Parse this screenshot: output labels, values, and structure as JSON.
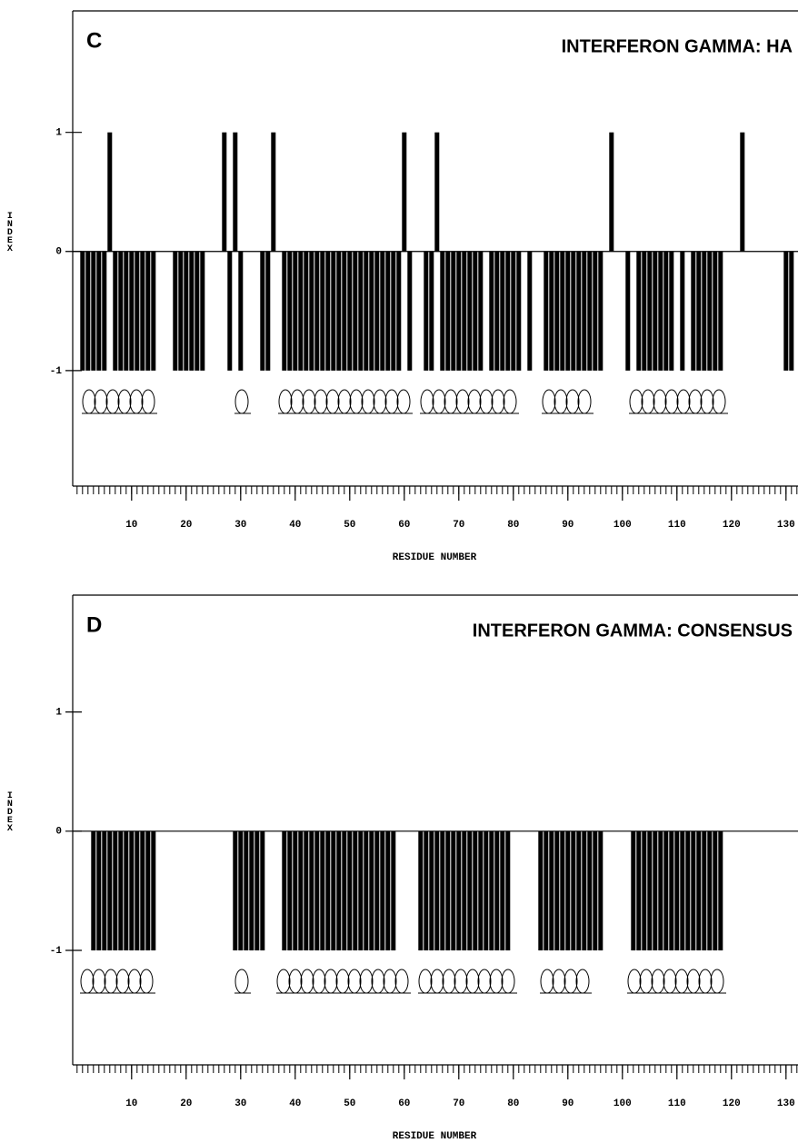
{
  "chart_data": [
    {
      "type": "bar",
      "panel": "C",
      "title": "INTERFERON GAMMA: HA",
      "x_label": "RESIDUE NUMBER",
      "y_label": "INDEX",
      "color": "#000000",
      "x": [
        1,
        2,
        3,
        4,
        5,
        6,
        7,
        8,
        9,
        10,
        11,
        12,
        13,
        14,
        18,
        19,
        20,
        21,
        22,
        23,
        27,
        28,
        29,
        30,
        34,
        35,
        36,
        38,
        39,
        40,
        41,
        42,
        43,
        44,
        45,
        46,
        47,
        48,
        49,
        50,
        51,
        52,
        53,
        54,
        55,
        56,
        57,
        58,
        59,
        60,
        61,
        64,
        65,
        66,
        67,
        68,
        69,
        70,
        71,
        72,
        73,
        74,
        76,
        77,
        78,
        79,
        80,
        81,
        83,
        86,
        87,
        88,
        89,
        90,
        91,
        92,
        93,
        94,
        95,
        96,
        98,
        101,
        103,
        104,
        105,
        106,
        107,
        108,
        109,
        111,
        113,
        114,
        115,
        116,
        117,
        118,
        122,
        130,
        131
      ],
      "values": [
        -1,
        -1,
        -1,
        -1,
        -1,
        1,
        -1,
        -1,
        -1,
        -1,
        -1,
        -1,
        -1,
        -1,
        -1,
        -1,
        -1,
        -1,
        -1,
        -1,
        1,
        -1,
        1,
        -1,
        -1,
        -1,
        1,
        -1,
        -1,
        -1,
        -1,
        -1,
        -1,
        -1,
        -1,
        -1,
        -1,
        -1,
        -1,
        -1,
        -1,
        -1,
        -1,
        -1,
        -1,
        -1,
        -1,
        -1,
        -1,
        1,
        -1,
        -1,
        -1,
        1,
        -1,
        -1,
        -1,
        -1,
        -1,
        -1,
        -1,
        -1,
        -1,
        -1,
        -1,
        -1,
        -1,
        -1,
        -1,
        -1,
        -1,
        -1,
        -1,
        -1,
        -1,
        -1,
        -1,
        -1,
        -1,
        -1,
        1,
        -1,
        -1,
        -1,
        -1,
        -1,
        -1,
        -1,
        -1,
        -1,
        -1,
        -1,
        -1,
        -1,
        -1,
        -1,
        1,
        -1,
        -1
      ],
      "xlim": [
        -0.8,
        132.2
      ],
      "ylim": [
        -1.97,
        2.02
      ],
      "xticks": [
        10,
        20,
        30,
        40,
        50,
        60,
        70,
        80,
        90,
        100,
        110,
        120,
        130
      ],
      "yticks": [
        -1,
        0,
        1
      ]
    },
    {
      "type": "bar",
      "panel": "D",
      "title": "INTERFERON GAMMA: CONSENSUS",
      "x_label": "RESIDUE NUMBER",
      "y_label": "INDEX",
      "color": "#000000",
      "x": [
        3,
        4,
        5,
        6,
        7,
        8,
        9,
        10,
        11,
        12,
        13,
        14,
        29,
        30,
        31,
        32,
        33,
        34,
        38,
        39,
        40,
        41,
        42,
        43,
        44,
        45,
        46,
        47,
        48,
        49,
        50,
        51,
        52,
        53,
        54,
        55,
        56,
        57,
        58,
        63,
        64,
        65,
        66,
        67,
        68,
        69,
        70,
        71,
        72,
        73,
        74,
        75,
        76,
        77,
        78,
        79,
        85,
        86,
        87,
        88,
        89,
        90,
        91,
        92,
        93,
        94,
        95,
        96,
        102,
        103,
        104,
        105,
        106,
        107,
        108,
        109,
        110,
        111,
        112,
        113,
        114,
        115,
        116,
        117,
        118
      ],
      "values": [
        -1,
        -1,
        -1,
        -1,
        -1,
        -1,
        -1,
        -1,
        -1,
        -1,
        -1,
        -1,
        -1,
        -1,
        -1,
        -1,
        -1,
        -1,
        -1,
        -1,
        -1,
        -1,
        -1,
        -1,
        -1,
        -1,
        -1,
        -1,
        -1,
        -1,
        -1,
        -1,
        -1,
        -1,
        -1,
        -1,
        -1,
        -1,
        -1,
        -1,
        -1,
        -1,
        -1,
        -1,
        -1,
        -1,
        -1,
        -1,
        -1,
        -1,
        -1,
        -1,
        -1,
        -1,
        -1,
        -1,
        -1,
        -1,
        -1,
        -1,
        -1,
        -1,
        -1,
        -1,
        -1,
        -1,
        -1,
        -1,
        -1,
        -1,
        -1,
        -1,
        -1,
        -1,
        -1,
        -1,
        -1,
        -1,
        -1,
        -1,
        -1,
        -1,
        -1,
        -1,
        -1
      ],
      "xlim": [
        -0.8,
        132.2
      ],
      "ylim": [
        -1.96,
        1.98
      ],
      "xticks": [
        10,
        20,
        30,
        40,
        50,
        60,
        70,
        80,
        90,
        100,
        110,
        120,
        130
      ],
      "yticks": [
        -1,
        0,
        1
      ]
    }
  ]
}
